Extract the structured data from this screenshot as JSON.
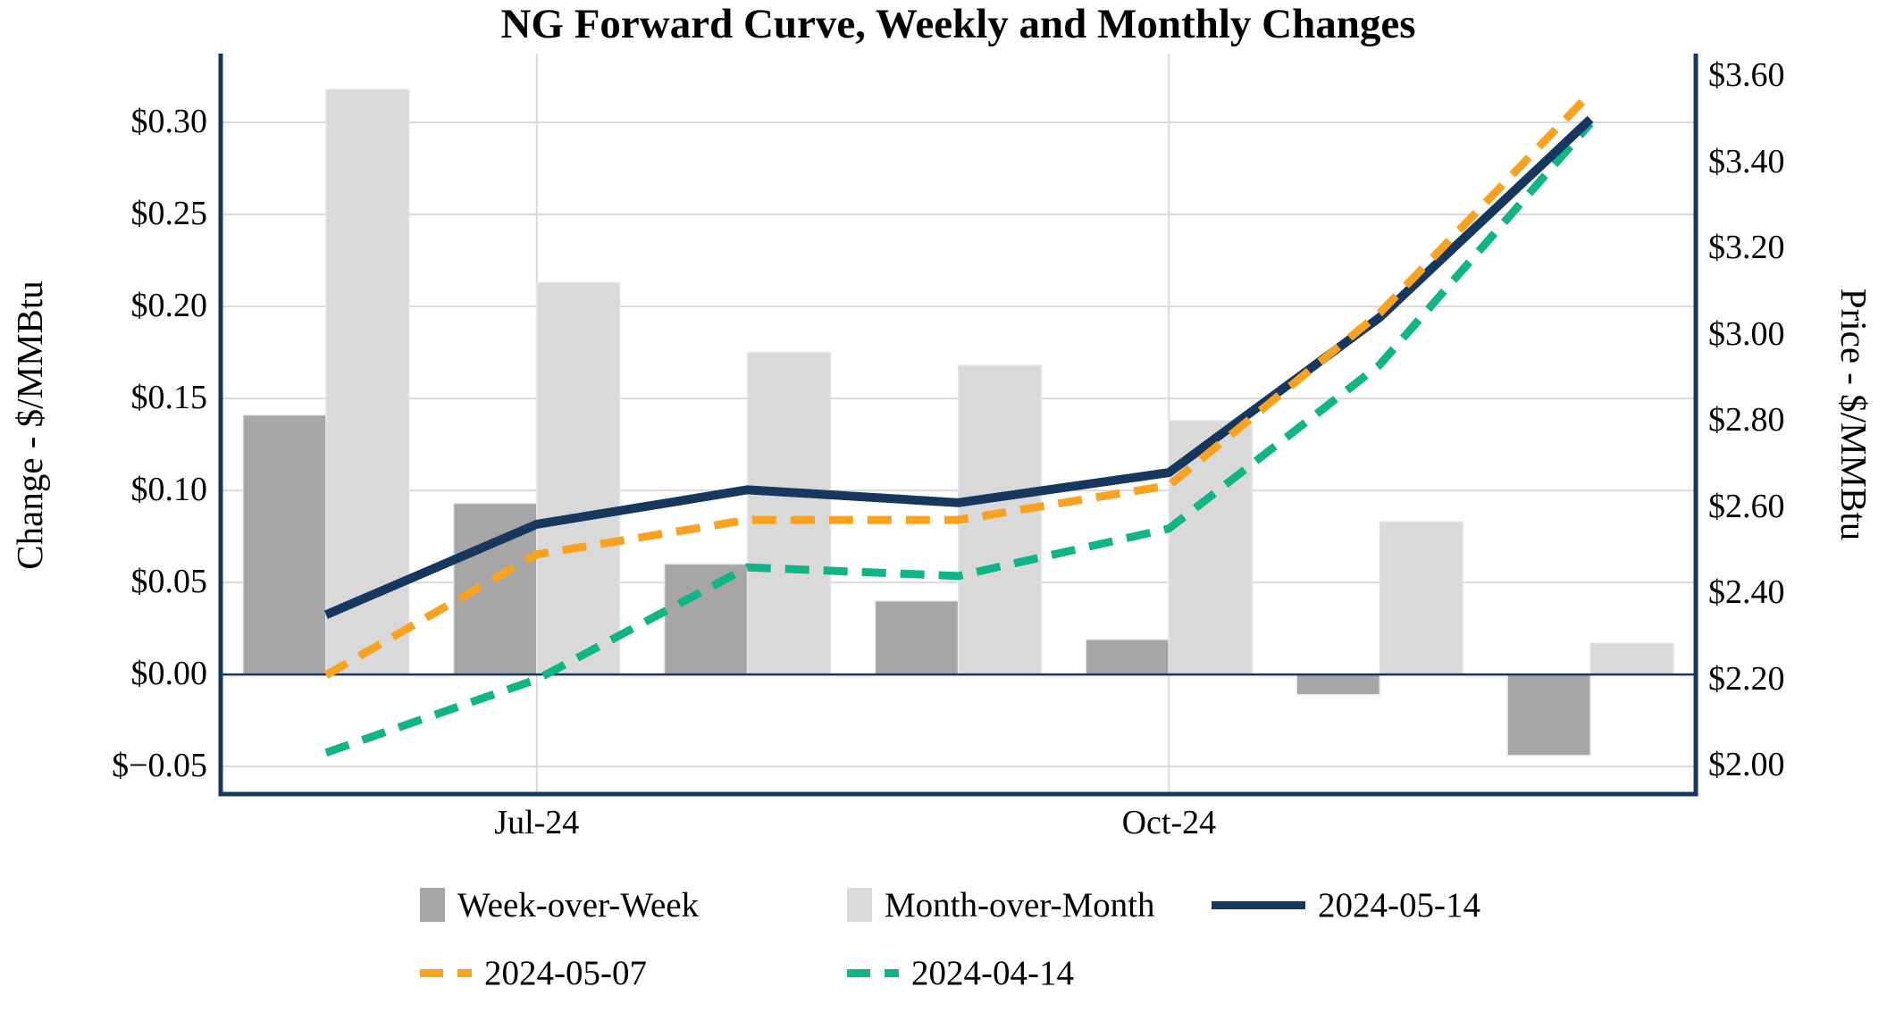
{
  "page": {
    "background": "#FFFFFF"
  },
  "chart_data": {
    "type": "combo_bar_line",
    "title": "NG Forward Curve, Weekly and Monthly Changes",
    "plot": {
      "categories_count": 7,
      "frame_color": "#17375E",
      "gridline_color": "#D9D9D9",
      "zero_line_color": "#17375E",
      "bar_edge_color": "#E2E7F0",
      "grid": "on"
    },
    "x_ticks": [
      {
        "index": 1,
        "label": "Jul-24"
      },
      {
        "index": 4,
        "label": "Oct-24"
      }
    ],
    "left_axis": {
      "label": "Change - $/MMBtu",
      "range": [
        -0.065,
        0.3374
      ],
      "ticks": [
        {
          "value": 0.3,
          "label": "$0.30"
        },
        {
          "value": 0.25,
          "label": "$0.25"
        },
        {
          "value": 0.2,
          "label": "$0.20"
        },
        {
          "value": 0.15,
          "label": "$0.15"
        },
        {
          "value": 0.1,
          "label": "$0.10"
        },
        {
          "value": 0.05,
          "label": "$0.05"
        },
        {
          "value": 0.0,
          "label": "$0.00"
        },
        {
          "value": -0.05,
          "label": "$−0.05"
        }
      ]
    },
    "right_axis": {
      "label": "Price - $/MMBtu",
      "range": [
        1.934,
        3.652
      ],
      "ticks": [
        {
          "value": 3.6,
          "label": "$3.60"
        },
        {
          "value": 3.4,
          "label": "$3.40"
        },
        {
          "value": 3.2,
          "label": "$3.20"
        },
        {
          "value": 3.0,
          "label": "$3.00"
        },
        {
          "value": 2.8,
          "label": "$2.80"
        },
        {
          "value": 2.6,
          "label": "$2.60"
        },
        {
          "value": 2.4,
          "label": "$2.40"
        },
        {
          "value": 2.2,
          "label": "$2.20"
        },
        {
          "value": 2.0,
          "label": "$2.00"
        }
      ]
    },
    "bar_series": [
      {
        "name": "Week-over-Week",
        "axis": "left",
        "color": "#A6A6A6",
        "values": [
          0.141,
          0.093,
          0.06,
          0.04,
          0.019,
          -0.011,
          -0.044
        ]
      },
      {
        "name": "Month-over-Month",
        "axis": "left",
        "color": "#D9D9D9",
        "values": [
          0.318,
          0.213,
          0.175,
          0.168,
          0.138,
          0.083,
          0.017
        ]
      }
    ],
    "line_series": [
      {
        "name": "2024-04-14",
        "axis": "right",
        "color": "#0FB584",
        "style": "dashed",
        "values": [
          2.03,
          2.2,
          2.46,
          2.44,
          2.55,
          2.93,
          3.49
        ]
      },
      {
        "name": "2024-05-14",
        "axis": "right",
        "color": "#17375E",
        "style": "solid",
        "values": [
          2.35,
          2.56,
          2.64,
          2.61,
          2.68,
          3.04,
          3.5
        ]
      },
      {
        "name": "2024-05-07",
        "axis": "right",
        "color": "#F9A21F",
        "style": "dashed",
        "values": [
          2.21,
          2.49,
          2.57,
          2.57,
          2.65,
          3.05,
          3.56
        ]
      }
    ]
  }
}
